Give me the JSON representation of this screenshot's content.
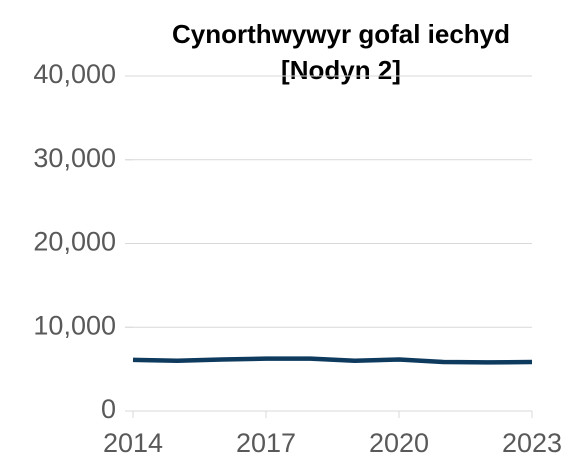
{
  "chart_data": {
    "type": "line",
    "title": [
      "Cynorthwywyr gofal iechyd",
      "[Nodyn 2]"
    ],
    "x": [
      2014,
      2015,
      2016,
      2017,
      2018,
      2019,
      2020,
      2021,
      2022,
      2023
    ],
    "series": [
      {
        "name": "Cynorthwywyr gofal iechyd",
        "color": "#0e3a5e",
        "values": [
          6100,
          6000,
          6150,
          6250,
          6250,
          6000,
          6150,
          5850,
          5800,
          5850
        ]
      }
    ],
    "xlim": [
      2014,
      2023
    ],
    "xticks": [
      2014,
      2017,
      2020,
      2023
    ],
    "ylim": [
      0,
      40000
    ],
    "yticks": [
      0,
      {
        "value": 10000,
        "label": "10,000"
      },
      {
        "value": 20000,
        "label": "20,000"
      },
      {
        "value": 30000,
        "label": "30,000"
      },
      {
        "value": 40000,
        "label": "40,000"
      }
    ],
    "grid": true
  }
}
